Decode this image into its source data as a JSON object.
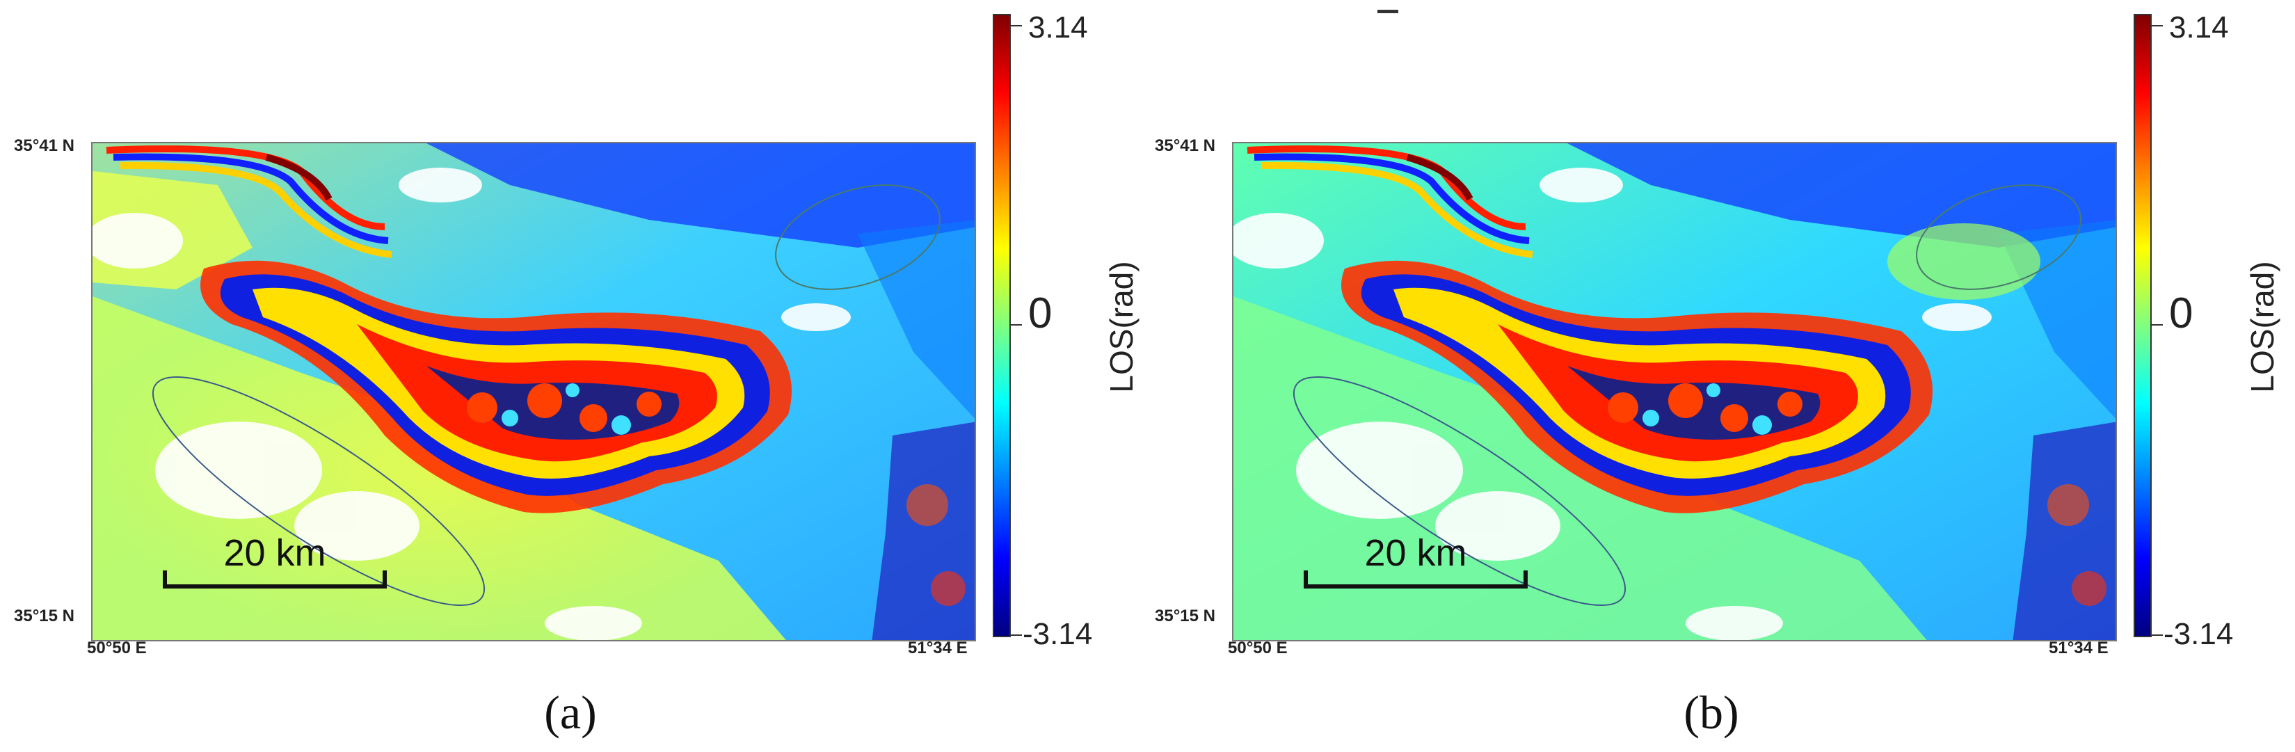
{
  "panels": [
    {
      "label": "(a)",
      "lat_top": "35°41 N",
      "lat_bottom": "35°15 N",
      "lon_left": "50°50 E",
      "lon_right": "51°34 E",
      "scalebar": "20 km",
      "variant": "a"
    },
    {
      "label": "(b)",
      "lat_top": "35°41 N",
      "lat_bottom": "35°15 N",
      "lon_left": "50°50 E",
      "lon_right": "51°34 E",
      "scalebar": "20 km",
      "variant": "b"
    }
  ],
  "colorbar": {
    "title": "LOS(rad)",
    "ticks": [
      "3.14",
      "0",
      "-3.14"
    ],
    "colormap": [
      "#800000",
      "#ff0000",
      "#ff8000",
      "#ffff00",
      "#80ff80",
      "#00ffff",
      "#0080ff",
      "#0000ff",
      "#000080"
    ]
  },
  "colors": {
    "ellipse_a_top": "#4a7a6a",
    "ellipse_a_bottom": "#3a5a8a"
  }
}
